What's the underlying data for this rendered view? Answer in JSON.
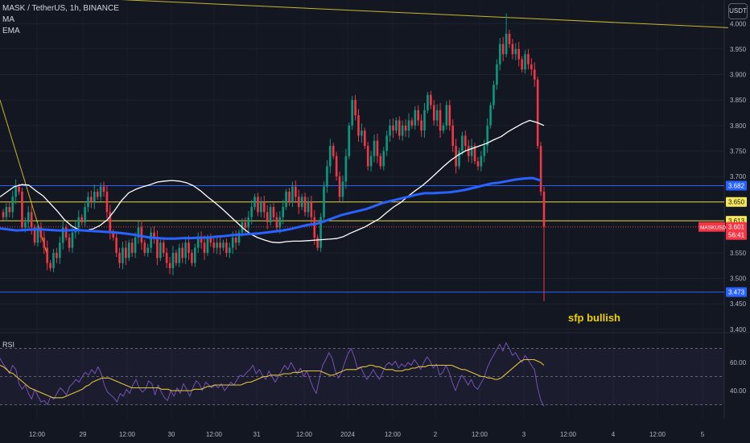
{
  "header": {
    "symbol_line": "MASK / TetherUS, 1h, BINANCE",
    "indicator_1": "MA",
    "indicator_2": "EMA",
    "currency": "USDT",
    "rsi_label": "RSI"
  },
  "annotation": "sfp bullish",
  "colors": {
    "background": "#131722",
    "up": "#089981",
    "down": "#f23645",
    "ma": "#ffffff",
    "ema": "#2962ff",
    "trendline": "#c9b52b",
    "level_blue": "#2962ff",
    "level_yellow": "#e6d84a",
    "rsi_line": "#7e57c2",
    "rsi_ma": "#e2c33a",
    "annotation": "#f0d000"
  },
  "chart_data": [
    {
      "type": "candlestick",
      "symbol": "MASK / TetherUS",
      "interval": "1h",
      "exchange": "BINANCE",
      "y_axis_ticks": [
        "4.000",
        "3.950",
        "3.900",
        "3.850",
        "3.800",
        "3.750",
        "3.700",
        "3.550",
        "3.500",
        "3.450",
        "3.400"
      ],
      "ylim": [
        3.395,
        4.04
      ],
      "x_axis_ticks": [
        "12:00",
        "29",
        "12:00",
        "30",
        "12:00",
        "31",
        "12:00",
        "2024",
        "12:00",
        "2",
        "12:00",
        "3",
        "12:00",
        "4",
        "12:00",
        "5"
      ],
      "closes": [
        3.62,
        3.64,
        3.63,
        3.66,
        3.68,
        3.67,
        3.6,
        3.61,
        3.63,
        3.6,
        3.57,
        3.6,
        3.58,
        3.56,
        3.53,
        3.52,
        3.55,
        3.54,
        3.57,
        3.6,
        3.58,
        3.56,
        3.59,
        3.6,
        3.62,
        3.61,
        3.64,
        3.66,
        3.65,
        3.67,
        3.66,
        3.68,
        3.67,
        3.63,
        3.59,
        3.58,
        3.55,
        3.53,
        3.56,
        3.54,
        3.57,
        3.55,
        3.58,
        3.6,
        3.57,
        3.55,
        3.56,
        3.59,
        3.58,
        3.54,
        3.57,
        3.55,
        3.53,
        3.52,
        3.55,
        3.53,
        3.56,
        3.54,
        3.57,
        3.55,
        3.53,
        3.56,
        3.58,
        3.57,
        3.55,
        3.58,
        3.57,
        3.56,
        3.57,
        3.56,
        3.57,
        3.55,
        3.56,
        3.58,
        3.57,
        3.59,
        3.61,
        3.6,
        3.62,
        3.64,
        3.66,
        3.63,
        3.65,
        3.63,
        3.61,
        3.64,
        3.62,
        3.6,
        3.62,
        3.64,
        3.67,
        3.65,
        3.68,
        3.66,
        3.64,
        3.66,
        3.63,
        3.65,
        3.62,
        3.58,
        3.56,
        3.62,
        3.68,
        3.72,
        3.76,
        3.74,
        3.7,
        3.66,
        3.69,
        3.74,
        3.8,
        3.85,
        3.82,
        3.78,
        3.79,
        3.76,
        3.72,
        3.74,
        3.77,
        3.74,
        3.72,
        3.75,
        3.78,
        3.8,
        3.79,
        3.81,
        3.78,
        3.8,
        3.79,
        3.81,
        3.8,
        3.83,
        3.81,
        3.79,
        3.83,
        3.86,
        3.84,
        3.81,
        3.83,
        3.79,
        3.8,
        3.84,
        3.8,
        3.76,
        3.72,
        3.75,
        3.78,
        3.76,
        3.74,
        3.76,
        3.73,
        3.72,
        3.74,
        3.76,
        3.8,
        3.84,
        3.88,
        3.92,
        3.96,
        3.94,
        3.98,
        3.96,
        3.94,
        3.95,
        3.93,
        3.91,
        3.94,
        3.92,
        3.91,
        3.89,
        3.76,
        3.67,
        3.601
      ],
      "ma": {
        "name": "MA",
        "color": "#ffffff"
      },
      "ema": {
        "name": "EMA",
        "color": "#2962ff"
      },
      "ma_values": [
        3.66,
        3.67,
        3.68,
        3.684,
        3.683,
        3.672,
        3.662,
        3.647,
        3.632,
        3.615,
        3.603,
        3.596,
        3.594,
        3.597,
        3.604,
        3.615,
        3.633,
        3.653,
        3.668,
        3.675,
        3.68,
        3.684,
        3.689,
        3.691,
        3.692,
        3.691,
        3.688,
        3.682,
        3.672,
        3.66,
        3.649,
        3.637,
        3.624,
        3.611,
        3.598,
        3.587,
        3.58,
        3.575,
        3.571,
        3.57,
        3.572,
        3.573,
        3.573,
        3.574,
        3.575,
        3.576,
        3.577,
        3.578,
        3.582,
        3.589,
        3.595,
        3.601,
        3.609,
        3.617,
        3.629,
        3.64,
        3.649,
        3.661,
        3.672,
        3.682,
        3.694,
        3.707,
        3.72,
        3.732,
        3.742,
        3.75,
        3.755,
        3.76,
        3.765,
        3.772,
        3.778,
        3.788,
        3.796,
        3.804,
        3.81,
        3.806,
        3.8
      ],
      "ema_values": [
        3.598,
        3.596,
        3.594,
        3.595,
        3.596,
        3.596,
        3.595,
        3.594,
        3.594,
        3.595,
        3.594,
        3.593,
        3.592,
        3.591,
        3.59,
        3.588,
        3.586,
        3.583,
        3.58,
        3.579,
        3.578,
        3.578,
        3.579,
        3.579,
        3.58,
        3.58,
        3.582,
        3.583,
        3.585,
        3.586,
        3.587,
        3.588,
        3.59,
        3.592,
        3.594,
        3.597,
        3.601,
        3.605,
        3.607,
        3.612,
        3.618,
        3.624,
        3.628,
        3.632,
        3.636,
        3.642,
        3.648,
        3.652,
        3.656,
        3.66,
        3.664,
        3.667,
        3.667,
        3.668,
        3.669,
        3.671,
        3.674,
        3.678,
        3.682,
        3.686,
        3.688,
        3.691,
        3.694,
        3.696,
        3.697,
        3.692
      ],
      "trendline": {
        "from": [
          0,
          4.058
        ],
        "to": [
          905,
          3.992
        ]
      },
      "price_levels": [
        {
          "value": 3.682,
          "label": "3.682",
          "color": "#2962ff"
        },
        {
          "value": 3.65,
          "label": "3.650",
          "color": "#e6d84a"
        },
        {
          "value": 3.613,
          "label": "3.613",
          "color": "#e6d84a"
        },
        {
          "value": 3.473,
          "label": "3.473",
          "color": "#2962ff"
        }
      ],
      "current_price": {
        "symbol": "MASKUSDT",
        "value": "3.601",
        "countdown": "56:41"
      }
    },
    {
      "type": "line",
      "title": "RSI",
      "y_axis_ticks": [
        "60.00",
        "40.00"
      ],
      "ylim": [
        20,
        80
      ],
      "series": [
        {
          "name": "RSI",
          "values": [
            63,
            59,
            56,
            52,
            58,
            55,
            45,
            41,
            44,
            38,
            34,
            41,
            36,
            32,
            33,
            30,
            36,
            34,
            38,
            42,
            40,
            37,
            43,
            45,
            48,
            46,
            50,
            53,
            51,
            55,
            52,
            57,
            52,
            44,
            39,
            37,
            35,
            32,
            38,
            36,
            41,
            38,
            44,
            48,
            42,
            39,
            41,
            47,
            45,
            37,
            44,
            39,
            35,
            33,
            40,
            36,
            42,
            38,
            45,
            41,
            36,
            42,
            47,
            45,
            40,
            46,
            44,
            42,
            44,
            42,
            45,
            40,
            43,
            46,
            44,
            48,
            51,
            50,
            53,
            55,
            58,
            52,
            55,
            51,
            48,
            54,
            50,
            46,
            50,
            54,
            58,
            55,
            60,
            56,
            52,
            56,
            50,
            54,
            48,
            42,
            38,
            49,
            58,
            62,
            67,
            63,
            54,
            49,
            53,
            60,
            66,
            70,
            64,
            56,
            57,
            52,
            48,
            51,
            55,
            51,
            48,
            53,
            58,
            60,
            58,
            61,
            56,
            59,
            57,
            60,
            58,
            62,
            59,
            55,
            60,
            64,
            61,
            56,
            59,
            51,
            53,
            58,
            53,
            46,
            40,
            46,
            51,
            48,
            44,
            48,
            43,
            41,
            45,
            49,
            56,
            61,
            65,
            69,
            73,
            68,
            74,
            70,
            65,
            67,
            63,
            60,
            65,
            62,
            58,
            55,
            42,
            33,
            29
          ]
        },
        {
          "name": "RSI MA",
          "values": [
            58,
            57,
            55,
            53,
            52,
            50,
            48,
            46,
            44,
            42,
            41,
            40,
            39,
            38,
            37,
            36,
            35,
            35,
            35,
            35,
            36,
            37,
            38,
            39,
            40,
            41,
            43,
            44,
            46,
            47,
            48,
            49,
            49,
            49,
            48,
            47,
            46,
            45,
            44,
            43,
            42,
            42,
            42,
            42,
            42,
            42,
            42,
            42,
            42,
            41,
            41,
            41,
            40,
            40,
            40,
            40,
            40,
            40,
            40,
            41,
            41,
            41,
            42,
            43,
            43,
            44,
            44,
            44,
            44,
            44,
            44,
            44,
            44,
            44,
            45,
            46,
            46,
            47,
            48,
            49,
            50,
            50,
            51,
            51,
            51,
            51,
            52,
            52,
            52,
            53,
            53,
            53,
            54,
            54,
            54,
            54,
            54,
            54,
            53,
            52,
            51,
            51,
            52,
            53,
            54,
            55,
            55,
            55,
            55,
            56,
            57,
            57,
            58,
            58,
            57,
            57,
            56,
            55,
            55,
            55,
            54,
            54,
            54,
            55,
            55,
            56,
            56,
            57,
            57,
            57,
            58,
            58,
            58,
            58,
            58,
            58,
            58,
            58,
            57,
            56,
            55,
            55,
            54,
            53,
            52,
            51,
            50,
            50,
            49,
            49,
            48,
            48,
            49,
            51,
            53,
            55,
            57,
            59,
            61,
            62,
            62,
            62,
            62,
            61,
            60,
            58
          ]
        }
      ],
      "levels": [
        70,
        50,
        30
      ]
    }
  ]
}
